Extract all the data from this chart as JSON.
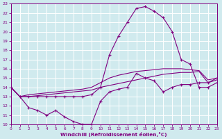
{
  "xlabel": "Windchill (Refroidissement éolien,°C)",
  "xlim": [
    0,
    23
  ],
  "ylim": [
    10,
    23
  ],
  "xticks": [
    0,
    1,
    2,
    3,
    4,
    5,
    6,
    7,
    8,
    9,
    10,
    11,
    12,
    13,
    14,
    15,
    16,
    17,
    18,
    19,
    20,
    21,
    22,
    23
  ],
  "yticks": [
    10,
    11,
    12,
    13,
    14,
    15,
    16,
    17,
    18,
    19,
    20,
    21,
    22,
    23
  ],
  "bg_color": "#d0eaee",
  "grid_color": "#ffffff",
  "line_color": "#800080",
  "marker": "+",
  "line_lw": 0.8,
  "marker_size": 3,
  "line1_x": [
    0,
    1,
    2,
    3,
    4,
    5,
    6,
    7,
    8,
    9,
    10,
    11,
    12,
    13,
    14,
    15,
    16,
    17,
    18,
    19,
    20,
    21,
    22,
    23
  ],
  "line1_y": [
    14.0,
    13.0,
    13.2,
    13.3,
    13.4,
    13.5,
    13.6,
    13.7,
    13.8,
    14.0,
    14.5,
    15.0,
    15.3,
    15.5,
    15.7,
    15.8,
    15.9,
    16.0,
    16.0,
    16.0,
    15.9,
    15.8,
    14.8,
    15.0
  ],
  "line2_x": [
    0,
    1,
    2,
    3,
    4,
    5,
    6,
    7,
    8,
    9,
    10,
    11,
    12,
    13,
    14,
    15,
    16,
    17,
    18,
    19,
    20,
    21,
    22,
    23
  ],
  "line2_y": [
    14.0,
    13.0,
    13.0,
    13.1,
    13.2,
    13.3,
    13.4,
    13.5,
    13.6,
    13.7,
    14.0,
    14.2,
    14.4,
    14.6,
    14.8,
    15.0,
    15.2,
    15.4,
    15.5,
    15.6,
    15.6,
    15.7,
    14.5,
    14.8
  ],
  "line3_x": [
    0,
    1,
    2,
    3,
    4,
    5,
    6,
    7,
    8,
    9,
    10,
    11,
    12,
    13,
    14,
    15,
    16,
    17,
    18,
    19,
    20,
    21,
    22,
    23
  ],
  "line3_y": [
    14.0,
    13.0,
    11.8,
    11.5,
    11.0,
    11.5,
    10.8,
    10.3,
    10.0,
    10.0,
    12.5,
    13.5,
    13.8,
    14.0,
    15.5,
    15.0,
    14.7,
    13.5,
    14.0,
    14.3,
    14.3,
    14.5,
    14.5,
    15.0
  ],
  "line4_x": [
    0,
    1,
    2,
    3,
    4,
    5,
    6,
    7,
    8,
    9,
    10,
    11,
    12,
    13,
    14,
    15,
    16,
    17,
    18,
    19,
    20,
    21,
    22,
    23
  ],
  "line4_y": [
    14.0,
    13.0,
    13.0,
    13.0,
    13.0,
    13.0,
    13.0,
    13.0,
    13.0,
    13.2,
    14.0,
    17.5,
    19.5,
    21.0,
    22.5,
    22.7,
    22.2,
    21.5,
    20.0,
    17.0,
    16.5,
    14.0,
    14.0,
    14.5
  ]
}
